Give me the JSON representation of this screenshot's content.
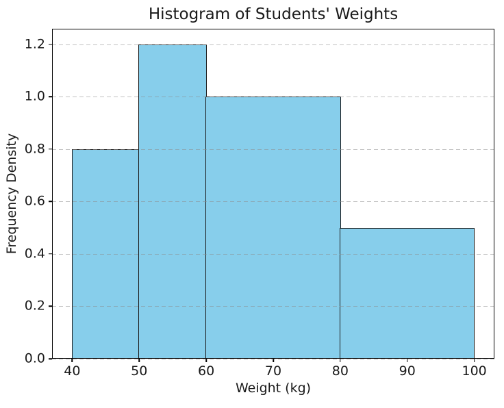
{
  "figure": {
    "background_color": "#ffffff"
  },
  "chart_data": {
    "type": "bar",
    "subtype": "histogram",
    "title": "Histogram of Students' Weights",
    "xlabel": "Weight (kg)",
    "ylabel": "Frequency Density",
    "bins": [
      {
        "start": 40,
        "end": 50,
        "density": 0.8
      },
      {
        "start": 50,
        "end": 60,
        "density": 1.2
      },
      {
        "start": 60,
        "end": 80,
        "density": 1.0
      },
      {
        "start": 80,
        "end": 100,
        "density": 0.5
      }
    ],
    "xticks": [
      40,
      50,
      60,
      70,
      80,
      90,
      100
    ],
    "ytick_labels": [
      "0.0",
      "0.2",
      "0.4",
      "0.6",
      "0.8",
      "1.0",
      "1.2"
    ],
    "xlim": [
      37,
      103
    ],
    "ylim": [
      0,
      1.26
    ],
    "grid": "horizontal-dashed",
    "grid_above_bars": true,
    "legend": "none",
    "bar_fill_color": "#87CEEB",
    "bar_edge_color": "#1a1a1a",
    "grid_dash_color": "rgba(140,140,140,0.55)",
    "axis_color": "#000000",
    "text_color": "#1a1a1a"
  }
}
